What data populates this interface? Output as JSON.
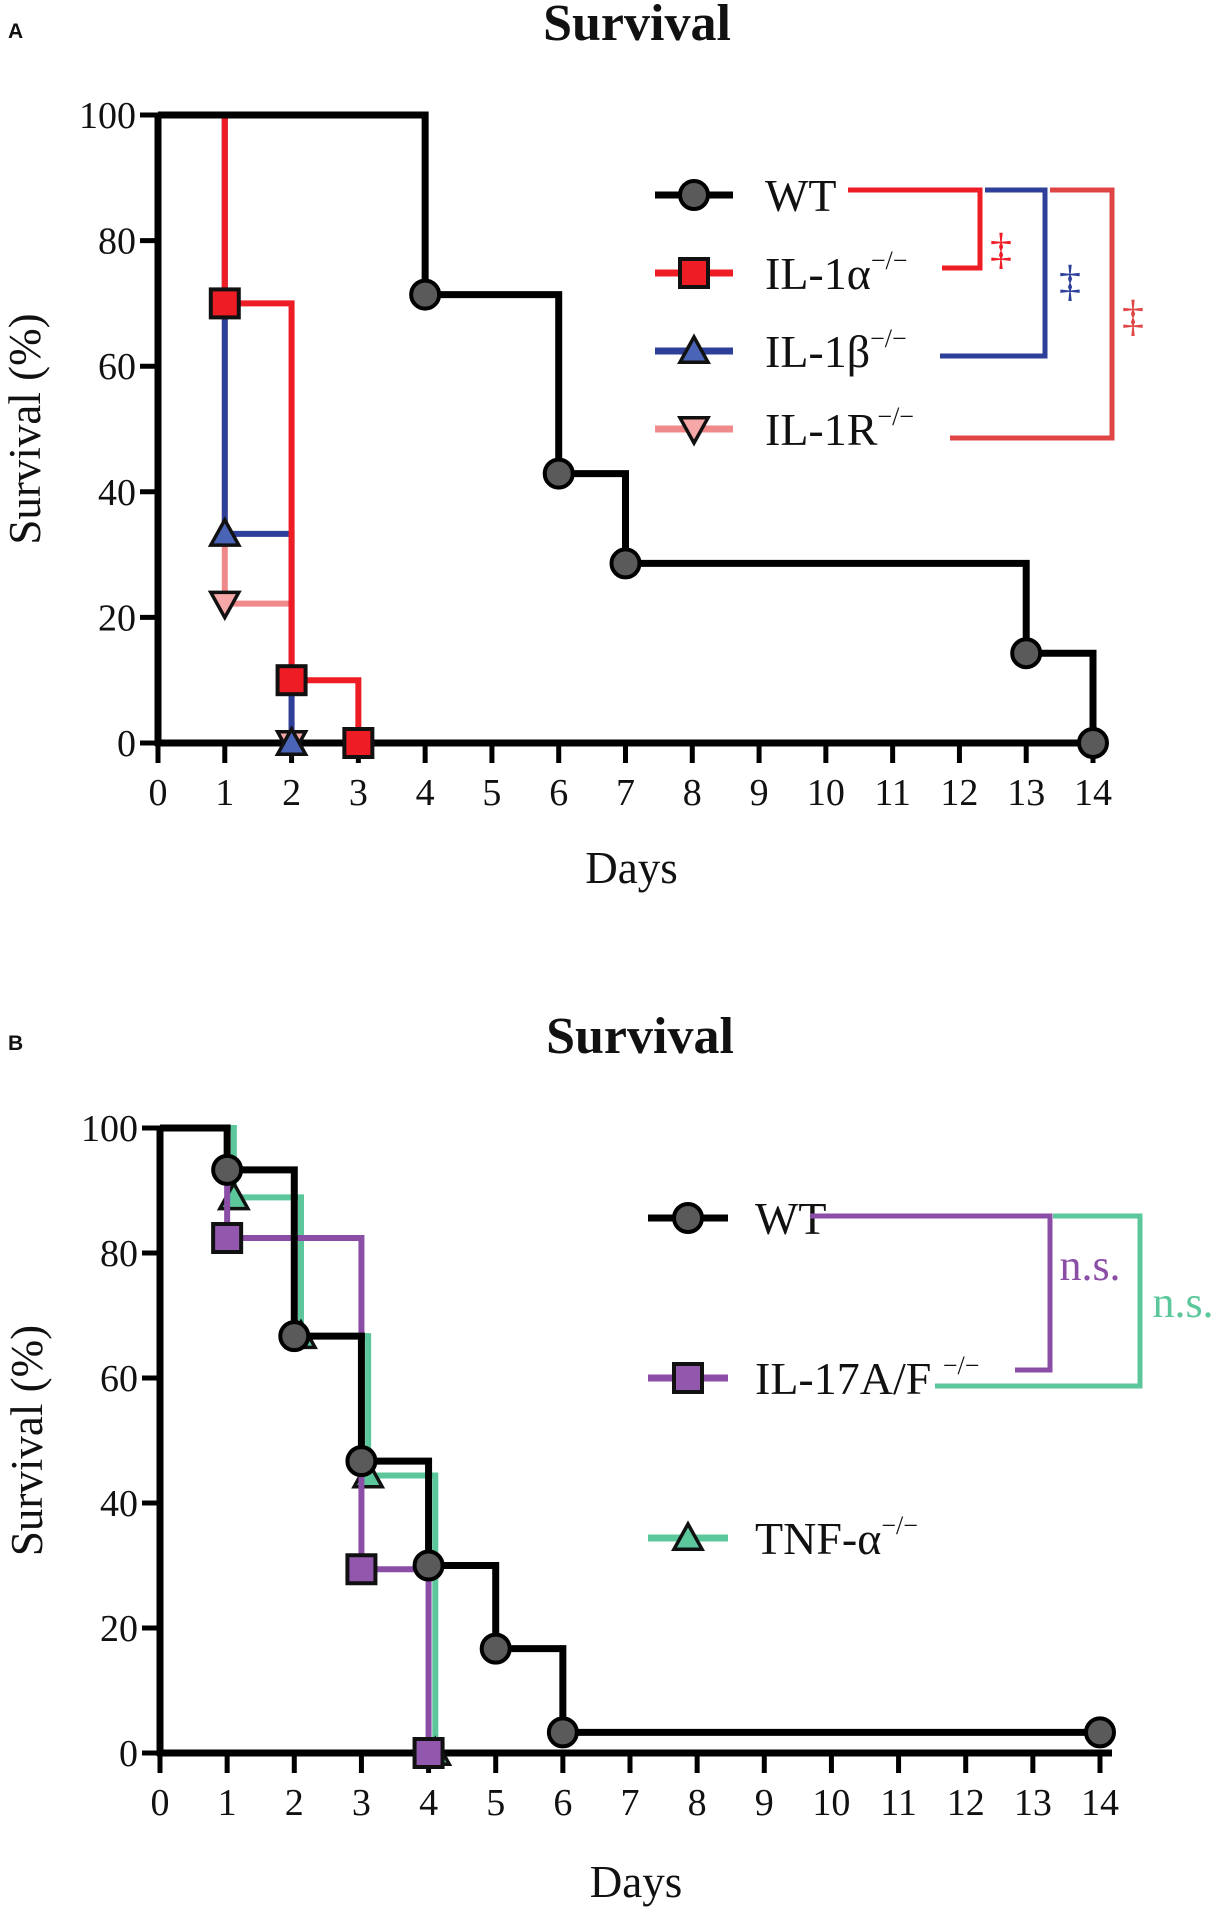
{
  "chart_data": [
    {
      "panel": "A",
      "type": "line",
      "subtype": "kaplan-meier-step",
      "title": "Survival",
      "xlabel": "Days",
      "ylabel": "Survival (%)",
      "x_ticks": [
        0,
        1,
        2,
        3,
        4,
        5,
        6,
        7,
        8,
        9,
        10,
        11,
        12,
        13,
        14
      ],
      "y_ticks": [
        0,
        20,
        40,
        60,
        80,
        100
      ],
      "xlim": [
        0,
        14
      ],
      "ylim": [
        0,
        100
      ],
      "series": [
        {
          "name": "WT",
          "superscript": "",
          "color": "#000000",
          "marker": "circle",
          "marker_fill": "#5a5a5a",
          "steps": [
            [
              0,
              100
            ],
            [
              4,
              71.4
            ],
            [
              6,
              42.9
            ],
            [
              7,
              28.6
            ],
            [
              13,
              14.3
            ],
            [
              14,
              0
            ]
          ],
          "markers": [
            [
              4,
              71.4
            ],
            [
              6,
              42.9
            ],
            [
              7,
              28.6
            ],
            [
              13,
              14.3
            ],
            [
              14,
              0
            ]
          ]
        },
        {
          "name": "IL-1α",
          "superscript": "−/−",
          "color": "#ee1c25",
          "marker": "square",
          "marker_fill": "#ee1c25",
          "steps": [
            [
              0,
              100
            ],
            [
              1,
              70
            ],
            [
              2,
              10
            ],
            [
              3,
              0
            ]
          ],
          "markers": [
            [
              1,
              70
            ],
            [
              2,
              10
            ],
            [
              3,
              0
            ]
          ]
        },
        {
          "name": "IL-1β",
          "superscript": "−/−",
          "color": "#2e3f99",
          "marker": "triangle-up",
          "marker_fill": "#4a64b8",
          "steps": [
            [
              0,
              100
            ],
            [
              1,
              33.3
            ],
            [
              2,
              0
            ]
          ],
          "markers": [
            [
              1,
              33.3
            ],
            [
              2,
              0
            ]
          ]
        },
        {
          "name": "IL-1R",
          "superscript": "−/−",
          "color": "#f08a8a",
          "marker": "triangle-down",
          "marker_fill": "#f6a8a8",
          "steps": [
            [
              0,
              100
            ],
            [
              1,
              22.2
            ],
            [
              2,
              0
            ]
          ],
          "markers": [
            [
              1,
              22.2
            ],
            [
              2,
              0
            ]
          ]
        }
      ],
      "comparisons": [
        {
          "a": "WT",
          "b": "IL-1α",
          "label": "‡",
          "color": "#ee1c25"
        },
        {
          "a": "WT",
          "b": "IL-1β",
          "label": "‡",
          "color": "#2e3f99"
        },
        {
          "a": "WT",
          "b": "IL-1R",
          "label": "‡",
          "color": "#e04545"
        }
      ]
    },
    {
      "panel": "B",
      "type": "line",
      "subtype": "kaplan-meier-step",
      "title": "Survival",
      "xlabel": "Days",
      "ylabel": "Survival (%)",
      "x_ticks": [
        0,
        1,
        2,
        3,
        4,
        5,
        6,
        7,
        8,
        9,
        10,
        11,
        12,
        13,
        14
      ],
      "y_ticks": [
        0,
        20,
        40,
        60,
        80,
        100
      ],
      "xlim": [
        0,
        14
      ],
      "ylim": [
        0,
        100
      ],
      "series": [
        {
          "name": "WT",
          "superscript": "",
          "color": "#000000",
          "marker": "circle",
          "marker_fill": "#5a5a5a",
          "steps": [
            [
              0,
              100
            ],
            [
              1,
              93.3
            ],
            [
              2,
              66.7
            ],
            [
              3,
              46.7
            ],
            [
              4,
              30
            ],
            [
              5,
              16.7
            ],
            [
              6,
              3.3
            ],
            [
              14,
              3.3
            ]
          ],
          "markers": [
            [
              1,
              93.3
            ],
            [
              2,
              66.7
            ],
            [
              3,
              46.7
            ],
            [
              4,
              30
            ],
            [
              5,
              16.7
            ],
            [
              6,
              3.3
            ],
            [
              14,
              3.3
            ]
          ]
        },
        {
          "name": "IL-17A/F ",
          "superscript": "−/−",
          "color": "#8b4ea6",
          "marker": "square",
          "marker_fill": "#9258ad",
          "steps": [
            [
              0,
              100
            ],
            [
              1,
              82.4
            ],
            [
              3,
              29.4
            ],
            [
              4,
              0
            ]
          ],
          "markers": [
            [
              1,
              82.4
            ],
            [
              3,
              29.4
            ],
            [
              4,
              0
            ]
          ]
        },
        {
          "name": "TNF-α",
          "superscript": "−/−",
          "color": "#5cc79b",
          "marker": "triangle-up",
          "marker_fill": "#5cc79b",
          "steps": [
            [
              0,
              100
            ],
            [
              1.1,
              88.9
            ],
            [
              2.1,
              66.7
            ],
            [
              3.1,
              44.4
            ],
            [
              4.1,
              0
            ]
          ],
          "markers": [
            [
              1.1,
              88.9
            ],
            [
              2.1,
              66.7
            ],
            [
              3.1,
              44.4
            ],
            [
              4.1,
              0
            ]
          ]
        }
      ],
      "comparisons": [
        {
          "a": "WT",
          "b": "IL-17A/F",
          "label": "n.s.",
          "color": "#8b4ea6"
        },
        {
          "a": "WT",
          "b": "TNF-α",
          "label": "n.s.",
          "color": "#5cc79b"
        }
      ]
    }
  ]
}
